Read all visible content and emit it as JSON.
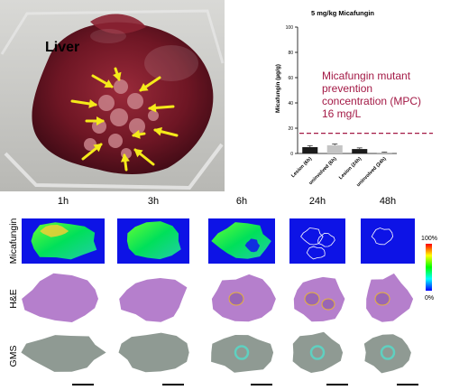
{
  "photo": {
    "organ_label": "Liver",
    "arrow_color": "#f4ea1a"
  },
  "chart_data": {
    "type": "bar",
    "title": "5 mg/kg Micafungin",
    "ylabel": "Micafungin (µg/g)",
    "xlabel": "",
    "ylim": [
      0,
      100
    ],
    "yticks": [
      0,
      20,
      40,
      60,
      80,
      100
    ],
    "categories": [
      "Lesion (6h)",
      "uninvolved (6h)",
      "Lesion (24h)",
      "uninvolved (24h)"
    ],
    "values": [
      5,
      6.5,
      3.5,
      0.8
    ],
    "errors": [
      1.2,
      1.0,
      0.9,
      0.3
    ],
    "bar_colors": [
      "#1a1a1a",
      "#c4c4c4",
      "#1a1a1a",
      "#c4c4c4"
    ],
    "reference_line": {
      "value": 16,
      "color": "#a31945",
      "label_lines": [
        "Micafungin mutant",
        "prevention",
        "concentration (MPC)",
        "16 mg/L"
      ]
    },
    "grid": false,
    "legend": "none"
  },
  "panel": {
    "time_points": [
      "1h",
      "3h",
      "6h",
      "24h",
      "48h"
    ],
    "row_labels": [
      "Micafungin",
      "H&E",
      "GMS"
    ],
    "colorbar": {
      "max_label": "100%",
      "min_label": "0%",
      "stops": [
        "#ff0000",
        "#ffff00",
        "#00ff00",
        "#00ffff",
        "#0000ff"
      ]
    },
    "colors": {
      "maldi_background": "#0d13e6",
      "he_tissue": "#b57fcc",
      "gms_tissue": "#8f9a93",
      "lesion_outline": "#e6b33a"
    }
  }
}
